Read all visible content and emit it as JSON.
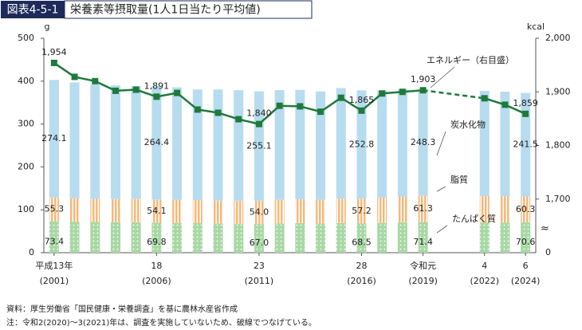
{
  "header": {
    "label": "図表4-5-1",
    "title": "栄養素等摂取量(1人1日当たり平均値)"
  },
  "chart_data": {
    "type": "bar",
    "stacked": true,
    "y_unit": "g",
    "y2_unit": "kcal",
    "categories": [
      "平成13年",
      null,
      null,
      null,
      null,
      "18",
      null,
      null,
      null,
      null,
      "23",
      null,
      null,
      null,
      null,
      "28",
      null,
      null,
      "令和元",
      null,
      null,
      "4",
      null,
      "6"
    ],
    "category_years": [
      "(2001)",
      null,
      null,
      null,
      null,
      "(2006)",
      null,
      null,
      null,
      null,
      "(2011)",
      null,
      null,
      null,
      null,
      "(2016)",
      null,
      null,
      "(2019)",
      null,
      null,
      "(2022)",
      null,
      "(2024)"
    ],
    "series": [
      {
        "name": "たんぱく質",
        "color": "#a8d8a4",
        "pattern": "dots",
        "values": [
          73.4,
          72.2,
          71.5,
          71.0,
          71.1,
          69.8,
          69.4,
          68.8,
          68.0,
          67.3,
          67.0,
          68.0,
          68.9,
          68.1,
          69.1,
          68.5,
          69.4,
          70.4,
          71.4,
          null,
          null,
          70.1,
          69.8,
          70.6
        ],
        "value_labels": [
          "73.4",
          null,
          null,
          null,
          null,
          "69.8",
          null,
          null,
          null,
          null,
          "67.0",
          null,
          null,
          null,
          null,
          "68.5",
          null,
          null,
          "71.4",
          null,
          null,
          null,
          null,
          "70.6"
        ]
      },
      {
        "name": "脂質",
        "color": "#f6b87a",
        "pattern": "stripes",
        "values": [
          55.3,
          54.6,
          54.0,
          54.1,
          53.9,
          54.1,
          54.1,
          53.8,
          53.5,
          53.7,
          54.0,
          55.0,
          55.7,
          55.0,
          57.0,
          57.2,
          59.0,
          60.4,
          61.3,
          null,
          null,
          62.0,
          61.5,
          60.3
        ],
        "value_labels": [
          "55.3",
          null,
          null,
          null,
          null,
          "54.1",
          null,
          null,
          null,
          null,
          "54.0",
          null,
          null,
          null,
          null,
          "57.2",
          null,
          null,
          "61.3",
          null,
          null,
          null,
          null,
          "60.3"
        ]
      },
      {
        "name": "炭水化物",
        "color": "#b7dcef",
        "pattern": "none",
        "values": [
          274.1,
          270.0,
          267.0,
          265.0,
          263.5,
          264.4,
          262.0,
          258.0,
          259.0,
          258.0,
          255.1,
          256.0,
          255.0,
          253.0,
          257.9,
          252.8,
          250.0,
          251.0,
          248.3,
          null,
          null,
          245.0,
          244.0,
          241.5
        ],
        "value_labels": [
          "274.1",
          null,
          null,
          null,
          null,
          "264.4",
          null,
          null,
          null,
          null,
          "255.1",
          null,
          null,
          null,
          null,
          "252.8",
          null,
          null,
          "248.3",
          null,
          null,
          null,
          null,
          "241.5"
        ]
      },
      {
        "name": "エネルギー（右目盛）",
        "type": "line",
        "axis": "y2",
        "color": "#1f7a3a",
        "values": [
          1954,
          1928,
          1920,
          1902,
          1904,
          1891,
          1898,
          1867,
          1861,
          1849,
          1840,
          1874,
          1873,
          1863,
          1889,
          1865,
          1897,
          1900,
          1903,
          null,
          null,
          1888,
          1876,
          1859
        ],
        "value_labels": [
          "1,954",
          null,
          null,
          null,
          null,
          "1,891",
          null,
          null,
          null,
          null,
          "1,840",
          null,
          null,
          null,
          null,
          "1,865",
          null,
          null,
          "1,903",
          null,
          null,
          null,
          null,
          "1,859"
        ]
      }
    ],
    "ylim": [
      0,
      500
    ],
    "yticks": [
      0,
      100,
      200,
      300,
      400,
      500
    ],
    "y2lim": [
      1600,
      2000
    ],
    "y2ticks": [
      {
        "value": 1700,
        "label": "1,700"
      },
      {
        "value": 1800,
        "label": "1,800"
      },
      {
        "value": 1900,
        "label": "1,900"
      },
      {
        "value": 2000,
        "label": "2,000"
      }
    ],
    "y2_axis_break": {
      "label": "0",
      "symbol": "≈"
    },
    "gap_line": "dashed",
    "grid": false
  },
  "notes": [
    "資料：厚生労働省「国民健康・栄養調査」を基に農林水産省作成",
    "注：令和2(2020)～3(2021)年は、調査を実施していないため、破線でつなげている。"
  ]
}
